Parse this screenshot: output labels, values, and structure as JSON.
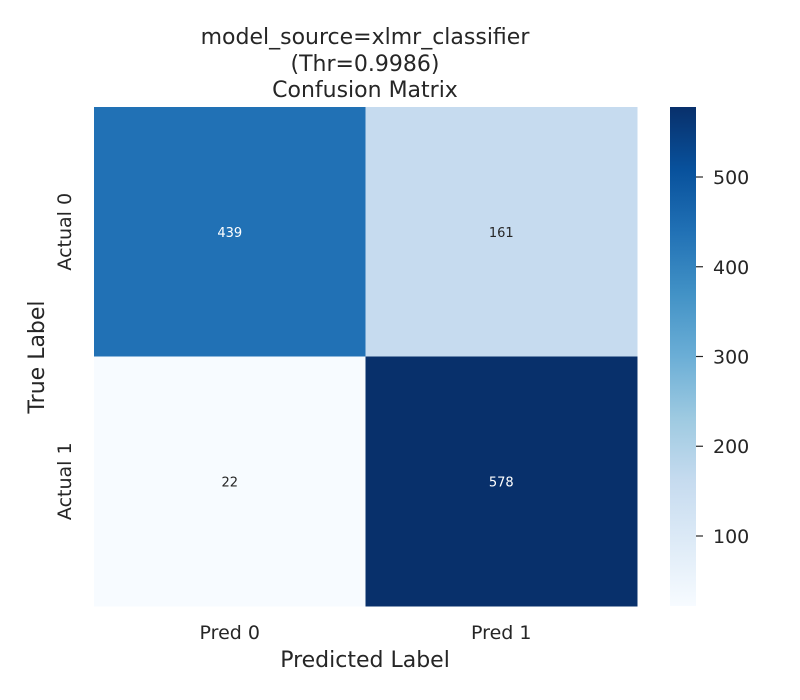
{
  "chart_data": {
    "type": "heatmap",
    "title_lines": [
      "model_source=xlmr_classifier",
      "(Thr=0.9986)",
      "Confusion Matrix"
    ],
    "xlabel": "Predicted Label",
    "ylabel": "True Label",
    "x_categories": [
      "Pred 0",
      "Pred 1"
    ],
    "y_categories": [
      "Actual 0",
      "Actual 1"
    ],
    "values": [
      [
        439,
        161
      ],
      [
        22,
        578
      ]
    ],
    "cell_labels": [
      [
        "439",
        "161"
      ],
      [
        "22",
        "578"
      ]
    ],
    "colormap": "Blues",
    "color_range": [
      22,
      578
    ],
    "colorbar": {
      "ticks": [
        100,
        200,
        300,
        400,
        500
      ],
      "tick_labels": [
        "100",
        "200",
        "300",
        "400",
        "500"
      ]
    },
    "grid": false
  }
}
